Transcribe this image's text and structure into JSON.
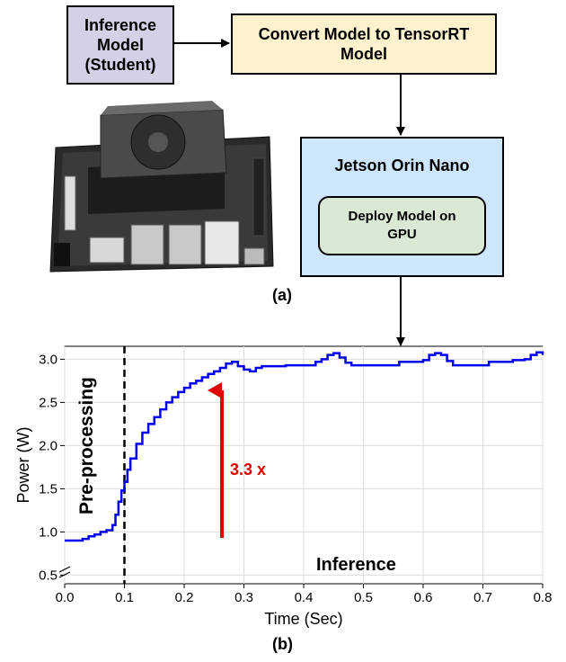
{
  "diagram": {
    "student_box": "Inference\nModel\n(Student)",
    "convert_box": "Convert Model to TensorRT\nModel",
    "jetson_title": "Jetson Orin Nano",
    "deploy_box": "Deploy Model on\nGPU",
    "caption_a": "(a)",
    "caption_b": "(b)",
    "colors": {
      "student": "#d3d1e6",
      "convert": "#fdf2cd",
      "jetson": "#cde6fb",
      "deploy": "#d9e9d4"
    }
  },
  "chart_data": {
    "type": "line",
    "xlabel": "Time (Sec)",
    "ylabel": "Power (W)",
    "xlim": [
      0.0,
      0.8
    ],
    "ylim": [
      0.4,
      3.15
    ],
    "xticks": [
      "0.0",
      "0.1",
      "0.2",
      "0.3",
      "0.4",
      "0.5",
      "0.6",
      "0.7",
      "0.8"
    ],
    "yticks": [
      "0.5",
      "1.0",
      "1.5",
      "2.0",
      "2.5",
      "3.0"
    ],
    "grid": true,
    "vline_x": 0.1,
    "annotations": {
      "pre": "Pre-processing",
      "speedup": "3.3 x",
      "inference": "Inference"
    },
    "series": [
      {
        "color": "#0000ee",
        "x": [
          0.0,
          0.01,
          0.02,
          0.03,
          0.04,
          0.05,
          0.06,
          0.07,
          0.08,
          0.085,
          0.09,
          0.095,
          0.1,
          0.105,
          0.11,
          0.12,
          0.13,
          0.14,
          0.15,
          0.16,
          0.17,
          0.18,
          0.19,
          0.2,
          0.21,
          0.22,
          0.23,
          0.24,
          0.25,
          0.26,
          0.27,
          0.28,
          0.29,
          0.3,
          0.31,
          0.32,
          0.33,
          0.34,
          0.35,
          0.36,
          0.37,
          0.38,
          0.39,
          0.4,
          0.41,
          0.42,
          0.43,
          0.44,
          0.45,
          0.46,
          0.47,
          0.48,
          0.49,
          0.5,
          0.52,
          0.54,
          0.56,
          0.58,
          0.6,
          0.61,
          0.62,
          0.63,
          0.64,
          0.65,
          0.67,
          0.69,
          0.71,
          0.73,
          0.75,
          0.77,
          0.78,
          0.79,
          0.8
        ],
        "y": [
          0.9,
          0.9,
          0.9,
          0.92,
          0.95,
          0.97,
          1.0,
          1.02,
          1.08,
          1.2,
          1.35,
          1.48,
          1.58,
          1.72,
          1.85,
          2.02,
          2.15,
          2.25,
          2.33,
          2.42,
          2.5,
          2.56,
          2.62,
          2.67,
          2.72,
          2.75,
          2.79,
          2.83,
          2.86,
          2.9,
          2.95,
          2.97,
          2.92,
          2.88,
          2.86,
          2.9,
          2.92,
          2.92,
          2.92,
          2.92,
          2.93,
          2.93,
          2.93,
          2.93,
          2.93,
          2.97,
          3.0,
          3.05,
          3.07,
          3.02,
          2.96,
          2.93,
          2.93,
          2.93,
          2.93,
          2.93,
          2.97,
          2.97,
          2.99,
          3.05,
          3.07,
          3.05,
          2.98,
          2.93,
          2.93,
          2.93,
          2.97,
          2.97,
          2.99,
          3.0,
          3.05,
          3.08,
          3.05
        ]
      }
    ]
  }
}
